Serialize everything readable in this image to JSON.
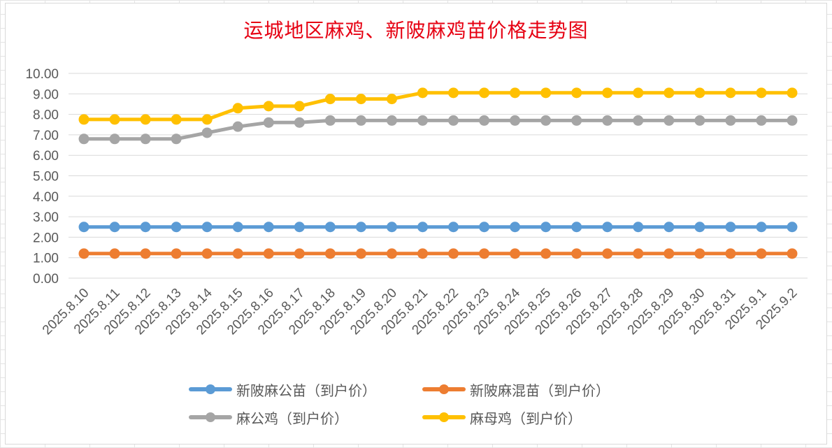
{
  "title": "运城地区麻鸡、新陂麻鸡苗价格走势图",
  "chart_data": {
    "type": "line",
    "title": "运城地区麻鸡、新陂麻鸡苗价格走势图",
    "categories": [
      "2025.8.10",
      "2025.8.11",
      "2025.8.12",
      "2025.8.13",
      "2025.8.14",
      "2025.8.15",
      "2025.8.16",
      "2025.8.17",
      "2025.8.18",
      "2025.8.19",
      "2025.8.20",
      "2025.8.21",
      "2025.8.22",
      "2025.8.23",
      "2025.8.24",
      "2025.8.25",
      "2025.8.26",
      "2025.8.27",
      "2025.8.28",
      "2025.8.29",
      "2025.8.30",
      "2025.8.31",
      "2025.9.1",
      "2025.9.2"
    ],
    "ylim": [
      0,
      10
    ],
    "yticks": [
      "0.00",
      "1.00",
      "2.00",
      "3.00",
      "4.00",
      "5.00",
      "6.00",
      "7.00",
      "8.00",
      "9.00",
      "10.00"
    ],
    "grid": true,
    "legend_position": "bottom",
    "series": [
      {
        "name": "新陂麻公苗（到户价）",
        "color": "#5b9bd5",
        "values": [
          2.5,
          2.5,
          2.5,
          2.5,
          2.5,
          2.5,
          2.5,
          2.5,
          2.5,
          2.5,
          2.5,
          2.5,
          2.5,
          2.5,
          2.5,
          2.5,
          2.5,
          2.5,
          2.5,
          2.5,
          2.5,
          2.5,
          2.5,
          2.5
        ]
      },
      {
        "name": "新陂麻混苗（到户价）",
        "color": "#ed7d31",
        "values": [
          1.2,
          1.2,
          1.2,
          1.2,
          1.2,
          1.2,
          1.2,
          1.2,
          1.2,
          1.2,
          1.2,
          1.2,
          1.2,
          1.2,
          1.2,
          1.2,
          1.2,
          1.2,
          1.2,
          1.2,
          1.2,
          1.2,
          1.2,
          1.2
        ]
      },
      {
        "name": "麻公鸡（到户价）",
        "color": "#a5a5a5",
        "values": [
          6.8,
          6.8,
          6.8,
          6.8,
          7.1,
          7.4,
          7.6,
          7.6,
          7.7,
          7.7,
          7.7,
          7.7,
          7.7,
          7.7,
          7.7,
          7.7,
          7.7,
          7.7,
          7.7,
          7.7,
          7.7,
          7.7,
          7.7,
          7.7
        ]
      },
      {
        "name": "麻母鸡（到户价）",
        "color": "#ffc000",
        "values": [
          7.75,
          7.75,
          7.75,
          7.75,
          7.75,
          8.3,
          8.4,
          8.4,
          8.75,
          8.75,
          8.75,
          9.05,
          9.05,
          9.05,
          9.05,
          9.05,
          9.05,
          9.05,
          9.05,
          9.05,
          9.05,
          9.05,
          9.05,
          9.05
        ]
      }
    ]
  }
}
